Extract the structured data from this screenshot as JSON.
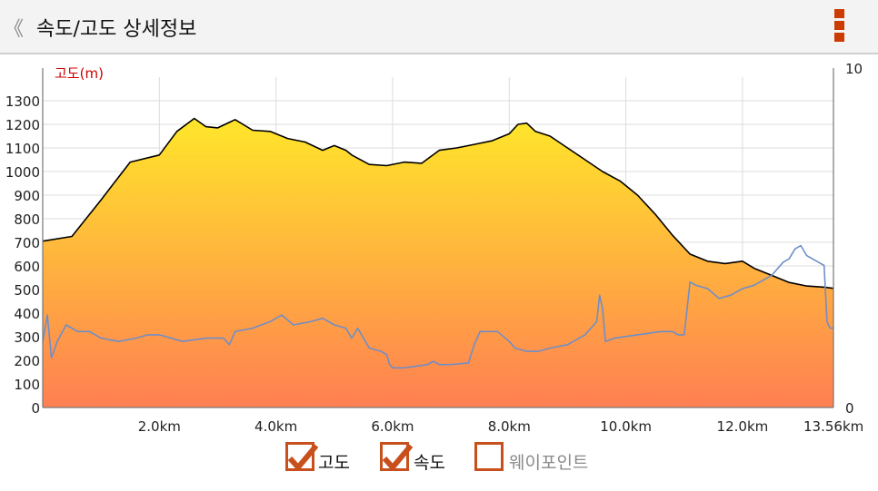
{
  "header": {
    "back_glyph": "《",
    "title": "속도/고도 상세정보",
    "menu_icon": "vertical-dots-icon"
  },
  "colors": {
    "accent": "#cc3b00",
    "elevation_fill_top": "#ffe62a",
    "elevation_fill_bottom": "#ff7f52",
    "speed_line": "#6f8ec7",
    "elevation_line": "#000000"
  },
  "chart_data": {
    "type": "area",
    "title": "",
    "y_left_label": "고도(m)",
    "y_left_ticks": [
      0,
      100,
      200,
      300,
      400,
      500,
      600,
      700,
      800,
      900,
      1000,
      1100,
      1200,
      1300
    ],
    "ylim_left": [
      0,
      1400
    ],
    "y_right_ticks": [
      0,
      10
    ],
    "ylim_right": [
      0,
      10
    ],
    "x_ticks": [
      "2.0km",
      "4.0km",
      "6.0km",
      "8.0km",
      "10.0km",
      "12.0km",
      "13.56km"
    ],
    "x_tick_values": [
      2.0,
      4.0,
      6.0,
      8.0,
      10.0,
      12.0,
      13.56
    ],
    "xlim": [
      0,
      13.56
    ],
    "grid": true,
    "series": [
      {
        "name": "고도",
        "axis": "left",
        "x": [
          0,
          0.5,
          1.0,
          1.5,
          2.0,
          2.3,
          2.6,
          2.8,
          3.0,
          3.3,
          3.6,
          3.9,
          4.2,
          4.5,
          4.8,
          5.0,
          5.2,
          5.3,
          5.6,
          5.9,
          6.2,
          6.5,
          6.8,
          7.1,
          7.4,
          7.7,
          8.0,
          8.15,
          8.3,
          8.45,
          8.7,
          9.0,
          9.3,
          9.6,
          9.9,
          10.2,
          10.5,
          10.8,
          11.1,
          11.4,
          11.7,
          12.0,
          12.2,
          12.5,
          12.8,
          13.1,
          13.4,
          13.56
        ],
        "values": [
          705,
          725,
          880,
          1040,
          1070,
          1170,
          1225,
          1190,
          1185,
          1220,
          1175,
          1170,
          1140,
          1125,
          1090,
          1110,
          1090,
          1070,
          1030,
          1025,
          1040,
          1035,
          1090,
          1100,
          1115,
          1130,
          1160,
          1200,
          1205,
          1170,
          1150,
          1100,
          1050,
          1000,
          960,
          900,
          820,
          730,
          650,
          620,
          610,
          620,
          590,
          560,
          530,
          515,
          510,
          505
        ]
      },
      {
        "name": "속도",
        "axis": "right",
        "x": [
          0,
          0.08,
          0.15,
          0.25,
          0.4,
          0.6,
          0.8,
          1.0,
          1.3,
          1.6,
          1.8,
          2.0,
          2.4,
          2.8,
          3.1,
          3.2,
          3.3,
          3.6,
          3.9,
          4.1,
          4.3,
          4.6,
          4.8,
          5.0,
          5.2,
          5.3,
          5.4,
          5.6,
          5.8,
          5.9,
          5.95,
          6.0,
          6.2,
          6.6,
          6.7,
          6.8,
          7.0,
          7.3,
          7.4,
          7.5,
          7.8,
          8.0,
          8.1,
          8.3,
          8.5,
          8.7,
          9.0,
          9.3,
          9.5,
          9.55,
          9.6,
          9.65,
          9.8,
          10.2,
          10.6,
          10.8,
          10.9,
          11.0,
          11.1,
          11.2,
          11.4,
          11.6,
          11.8,
          12.0,
          12.2,
          12.5,
          12.7,
          12.8,
          12.9,
          13.0,
          13.1,
          13.3,
          13.4,
          13.45,
          13.5,
          13.56
        ],
        "values": [
          2.0,
          2.8,
          1.5,
          2.0,
          2.5,
          2.3,
          2.3,
          2.1,
          2.0,
          2.1,
          2.2,
          2.2,
          2.0,
          2.1,
          2.1,
          1.9,
          2.3,
          2.4,
          2.6,
          2.8,
          2.5,
          2.6,
          2.7,
          2.5,
          2.4,
          2.1,
          2.4,
          1.8,
          1.7,
          1.6,
          1.3,
          1.2,
          1.2,
          1.3,
          1.4,
          1.3,
          1.3,
          1.35,
          1.9,
          2.3,
          2.3,
          2.0,
          1.8,
          1.7,
          1.7,
          1.8,
          1.9,
          2.2,
          2.6,
          3.4,
          3.0,
          2.0,
          2.1,
          2.2,
          2.3,
          2.3,
          2.2,
          2.2,
          3.8,
          3.7,
          3.6,
          3.3,
          3.4,
          3.6,
          3.7,
          4.0,
          4.4,
          4.5,
          4.8,
          4.9,
          4.6,
          4.4,
          4.3,
          2.6,
          2.4,
          2.4
        ]
      }
    ]
  },
  "legend": [
    {
      "label": "고도",
      "checked": true
    },
    {
      "label": "속도",
      "checked": true
    },
    {
      "label": "웨이포인트",
      "checked": false
    }
  ]
}
